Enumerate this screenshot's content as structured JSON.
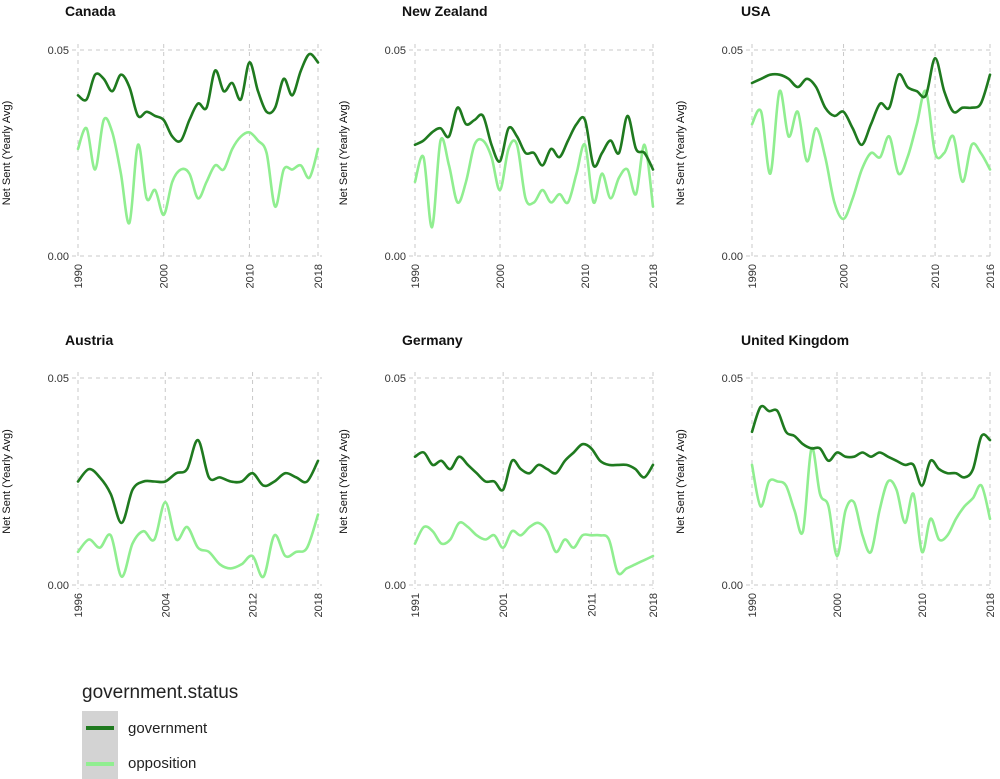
{
  "colors": {
    "government": "#1f7a1f",
    "opposition": "#90ee90",
    "grid": "#c9c9c9",
    "legend_key_bg": "#d3d3d3"
  },
  "legend": {
    "title": "government.status",
    "entries": [
      {
        "name": "government",
        "color": "#1f7a1f"
      },
      {
        "name": "opposition",
        "color": "#90ee90"
      }
    ]
  },
  "chart_data": [
    {
      "type": "line",
      "title": "Canada",
      "ylabel": "Net Sent (Yearly Avg)",
      "xlim": [
        1990,
        2018
      ],
      "ylim": [
        0,
        0.05
      ],
      "xticks": [
        1990,
        2000,
        2010,
        2018
      ],
      "xtick_labels": [
        "1990",
        "2000",
        "2010",
        "2018"
      ],
      "yticks": [
        0,
        0.05
      ],
      "ytick_labels": [
        "0.00",
        "0.05"
      ],
      "grid": true,
      "series": [
        {
          "name": "government",
          "x": [
            1990,
            1991,
            1992,
            1993,
            1994,
            1995,
            1996,
            1997,
            1998,
            1999,
            2000,
            2001,
            2002,
            2003,
            2004,
            2005,
            2006,
            2007,
            2008,
            2009,
            2010,
            2011,
            2012,
            2013,
            2014,
            2015,
            2016,
            2017,
            2018
          ],
          "y": [
            0.039,
            0.038,
            0.044,
            0.043,
            0.04,
            0.044,
            0.041,
            0.034,
            0.035,
            0.034,
            0.033,
            0.029,
            0.028,
            0.033,
            0.037,
            0.036,
            0.045,
            0.04,
            0.042,
            0.038,
            0.047,
            0.04,
            0.035,
            0.036,
            0.043,
            0.039,
            0.045,
            0.049,
            0.047
          ]
        },
        {
          "name": "opposition",
          "x": [
            1990,
            1991,
            1992,
            1993,
            1994,
            1995,
            1996,
            1997,
            1998,
            1999,
            2000,
            2001,
            2002,
            2003,
            2004,
            2005,
            2006,
            2007,
            2008,
            2009,
            2010,
            2011,
            2012,
            2013,
            2014,
            2015,
            2016,
            2017,
            2018
          ],
          "y": [
            0.026,
            0.031,
            0.021,
            0.033,
            0.03,
            0.02,
            0.008,
            0.027,
            0.014,
            0.016,
            0.01,
            0.018,
            0.021,
            0.02,
            0.014,
            0.018,
            0.022,
            0.021,
            0.026,
            0.029,
            0.03,
            0.028,
            0.025,
            0.012,
            0.021,
            0.021,
            0.022,
            0.019,
            0.026
          ]
        }
      ]
    },
    {
      "type": "line",
      "title": "New Zealand",
      "ylabel": "Net Sent (Yearly Avg)",
      "xlim": [
        1990,
        2018
      ],
      "ylim": [
        0,
        0.05
      ],
      "xticks": [
        1990,
        2000,
        2010,
        2018
      ],
      "xtick_labels": [
        "1990",
        "2000",
        "2010",
        "2018"
      ],
      "yticks": [
        0,
        0.05
      ],
      "ytick_labels": [
        "0.00",
        "0.05"
      ],
      "grid": true,
      "series": [
        {
          "name": "government",
          "x": [
            1990,
            1991,
            1992,
            1993,
            1994,
            1995,
            1996,
            1997,
            1998,
            1999,
            2000,
            2001,
            2002,
            2003,
            2004,
            2005,
            2006,
            2007,
            2008,
            2009,
            2010,
            2011,
            2012,
            2013,
            2014,
            2015,
            2016,
            2017,
            2018
          ],
          "y": [
            0.027,
            0.028,
            0.03,
            0.031,
            0.029,
            0.036,
            0.032,
            0.033,
            0.034,
            0.027,
            0.023,
            0.031,
            0.029,
            0.025,
            0.025,
            0.022,
            0.026,
            0.024,
            0.028,
            0.032,
            0.033,
            0.022,
            0.025,
            0.028,
            0.025,
            0.034,
            0.026,
            0.025,
            0.021
          ]
        },
        {
          "name": "opposition",
          "x": [
            1990,
            1991,
            1992,
            1993,
            1994,
            1995,
            1996,
            1997,
            1998,
            1999,
            2000,
            2001,
            2002,
            2003,
            2004,
            2005,
            2006,
            2007,
            2008,
            2009,
            2010,
            2011,
            2012,
            2013,
            2014,
            2015,
            2016,
            2017,
            2018
          ],
          "y": [
            0.018,
            0.024,
            0.007,
            0.028,
            0.022,
            0.013,
            0.018,
            0.027,
            0.028,
            0.024,
            0.016,
            0.026,
            0.027,
            0.014,
            0.013,
            0.016,
            0.013,
            0.015,
            0.013,
            0.02,
            0.027,
            0.013,
            0.02,
            0.014,
            0.019,
            0.021,
            0.015,
            0.027,
            0.012
          ]
        }
      ]
    },
    {
      "type": "line",
      "title": "USA",
      "ylabel": "Net Sent (Yearly Avg)",
      "xlim": [
        1990,
        2016
      ],
      "ylim": [
        0,
        0.05
      ],
      "xticks": [
        1990,
        2000,
        2010,
        2016
      ],
      "xtick_labels": [
        "1990",
        "2000",
        "2010",
        "2016"
      ],
      "yticks": [
        0,
        0.05
      ],
      "ytick_labels": [
        "0.00",
        "0.05"
      ],
      "grid": true,
      "series": [
        {
          "name": "government",
          "x": [
            1990,
            1991,
            1992,
            1993,
            1994,
            1995,
            1996,
            1997,
            1998,
            1999,
            2000,
            2001,
            2002,
            2003,
            2004,
            2005,
            2006,
            2007,
            2008,
            2009,
            2010,
            2011,
            2012,
            2013,
            2014,
            2015,
            2016
          ],
          "y": [
            0.042,
            0.043,
            0.044,
            0.044,
            0.043,
            0.041,
            0.043,
            0.041,
            0.036,
            0.034,
            0.035,
            0.031,
            0.027,
            0.032,
            0.037,
            0.036,
            0.044,
            0.041,
            0.04,
            0.039,
            0.048,
            0.04,
            0.035,
            0.036,
            0.036,
            0.037,
            0.044
          ]
        },
        {
          "name": "opposition",
          "x": [
            1990,
            1991,
            1992,
            1993,
            1994,
            1995,
            1996,
            1997,
            1998,
            1999,
            2000,
            2001,
            2002,
            2003,
            2004,
            2005,
            2006,
            2007,
            2008,
            2009,
            2010,
            2011,
            2012,
            2013,
            2014,
            2015,
            2016
          ],
          "y": [
            0.032,
            0.035,
            0.02,
            0.04,
            0.029,
            0.035,
            0.023,
            0.031,
            0.024,
            0.013,
            0.009,
            0.014,
            0.021,
            0.025,
            0.024,
            0.029,
            0.02,
            0.024,
            0.032,
            0.04,
            0.025,
            0.025,
            0.029,
            0.018,
            0.027,
            0.025,
            0.021
          ]
        }
      ]
    },
    {
      "type": "line",
      "title": "Austria",
      "ylabel": "Net Sent (Yearly Avg)",
      "xlim": [
        1996,
        2018
      ],
      "ylim": [
        0,
        0.05
      ],
      "xticks": [
        1996,
        2004,
        2012,
        2018
      ],
      "xtick_labels": [
        "1996",
        "2004",
        "2012",
        "2018"
      ],
      "yticks": [
        0,
        0.05
      ],
      "ytick_labels": [
        "0.00",
        "0.05"
      ],
      "grid": true,
      "series": [
        {
          "name": "government",
          "x": [
            1996,
            1997,
            1998,
            1999,
            2000,
            2001,
            2002,
            2003,
            2004,
            2005,
            2006,
            2007,
            2008,
            2009,
            2010,
            2011,
            2012,
            2013,
            2014,
            2015,
            2016,
            2017,
            2018
          ],
          "y": [
            0.025,
            0.028,
            0.026,
            0.022,
            0.015,
            0.023,
            0.025,
            0.025,
            0.025,
            0.027,
            0.028,
            0.035,
            0.026,
            0.026,
            0.025,
            0.025,
            0.027,
            0.024,
            0.025,
            0.027,
            0.026,
            0.025,
            0.03
          ]
        },
        {
          "name": "opposition",
          "x": [
            1996,
            1997,
            1998,
            1999,
            2000,
            2001,
            2002,
            2003,
            2004,
            2005,
            2006,
            2007,
            2008,
            2009,
            2010,
            2011,
            2012,
            2013,
            2014,
            2015,
            2016,
            2017,
            2018
          ],
          "y": [
            0.008,
            0.011,
            0.009,
            0.012,
            0.002,
            0.01,
            0.013,
            0.011,
            0.02,
            0.011,
            0.014,
            0.009,
            0.008,
            0.005,
            0.004,
            0.005,
            0.007,
            0.002,
            0.012,
            0.007,
            0.008,
            0.009,
            0.017
          ]
        }
      ]
    },
    {
      "type": "line",
      "title": "Germany",
      "ylabel": "Net Sent (Yearly Avg)",
      "xlim": [
        1991,
        2018
      ],
      "ylim": [
        0,
        0.05
      ],
      "xticks": [
        1991,
        2001,
        2011,
        2018
      ],
      "xtick_labels": [
        "1991",
        "2001",
        "2011",
        "2018"
      ],
      "yticks": [
        0,
        0.05
      ],
      "ytick_labels": [
        "0.00",
        "0.05"
      ],
      "grid": true,
      "series": [
        {
          "name": "government",
          "x": [
            1991,
            1992,
            1993,
            1994,
            1995,
            1996,
            1997,
            1998,
            1999,
            2000,
            2001,
            2002,
            2003,
            2004,
            2005,
            2006,
            2007,
            2008,
            2009,
            2010,
            2011,
            2012,
            2013,
            2014,
            2015,
            2016,
            2017,
            2018
          ],
          "y": [
            0.031,
            0.032,
            0.029,
            0.03,
            0.028,
            0.031,
            0.029,
            0.027,
            0.025,
            0.025,
            0.023,
            0.03,
            0.028,
            0.027,
            0.029,
            0.028,
            0.027,
            0.03,
            0.032,
            0.034,
            0.033,
            0.03,
            0.029,
            0.029,
            0.029,
            0.028,
            0.026,
            0.029
          ]
        },
        {
          "name": "opposition",
          "x": [
            1991,
            1992,
            1993,
            1994,
            1995,
            1996,
            1997,
            1998,
            1999,
            2000,
            2001,
            2002,
            2003,
            2004,
            2005,
            2006,
            2007,
            2008,
            2009,
            2010,
            2011,
            2012,
            2013,
            2014,
            2015,
            2016,
            2017,
            2018
          ],
          "y": [
            0.01,
            0.014,
            0.013,
            0.01,
            0.011,
            0.015,
            0.014,
            0.012,
            0.011,
            0.012,
            0.009,
            0.013,
            0.012,
            0.014,
            0.015,
            0.013,
            0.008,
            0.011,
            0.009,
            0.012,
            0.012,
            0.012,
            0.011,
            0.003,
            0.004,
            0.005,
            0.006,
            0.007
          ]
        }
      ]
    },
    {
      "type": "line",
      "title": "United Kingdom",
      "ylabel": "Net Sent (Yearly Avg)",
      "xlim": [
        1990,
        2018
      ],
      "ylim": [
        0,
        0.05
      ],
      "xticks": [
        1990,
        2000,
        2010,
        2018
      ],
      "xtick_labels": [
        "1990",
        "2000",
        "2010",
        "2018"
      ],
      "yticks": [
        0,
        0.05
      ],
      "ytick_labels": [
        "0.00",
        "0.05"
      ],
      "grid": true,
      "series": [
        {
          "name": "government",
          "x": [
            1990,
            1991,
            1992,
            1993,
            1994,
            1995,
            1996,
            1997,
            1998,
            1999,
            2000,
            2001,
            2002,
            2003,
            2004,
            2005,
            2006,
            2007,
            2008,
            2009,
            2010,
            2011,
            2012,
            2013,
            2014,
            2015,
            2016,
            2017,
            2018
          ],
          "y": [
            0.037,
            0.043,
            0.042,
            0.042,
            0.037,
            0.036,
            0.034,
            0.033,
            0.033,
            0.03,
            0.032,
            0.031,
            0.031,
            0.032,
            0.031,
            0.032,
            0.031,
            0.03,
            0.029,
            0.029,
            0.024,
            0.03,
            0.028,
            0.027,
            0.027,
            0.026,
            0.028,
            0.036,
            0.035
          ]
        },
        {
          "name": "opposition",
          "x": [
            1990,
            1991,
            1992,
            1993,
            1994,
            1995,
            1996,
            1997,
            1998,
            1999,
            2000,
            2001,
            2002,
            2003,
            2004,
            2005,
            2006,
            2007,
            2008,
            2009,
            2010,
            2011,
            2012,
            2013,
            2014,
            2015,
            2016,
            2017,
            2018
          ],
          "y": [
            0.029,
            0.019,
            0.025,
            0.025,
            0.024,
            0.018,
            0.013,
            0.033,
            0.022,
            0.019,
            0.007,
            0.018,
            0.02,
            0.012,
            0.008,
            0.018,
            0.025,
            0.023,
            0.015,
            0.022,
            0.008,
            0.016,
            0.011,
            0.012,
            0.016,
            0.019,
            0.021,
            0.024,
            0.016
          ]
        }
      ]
    }
  ]
}
